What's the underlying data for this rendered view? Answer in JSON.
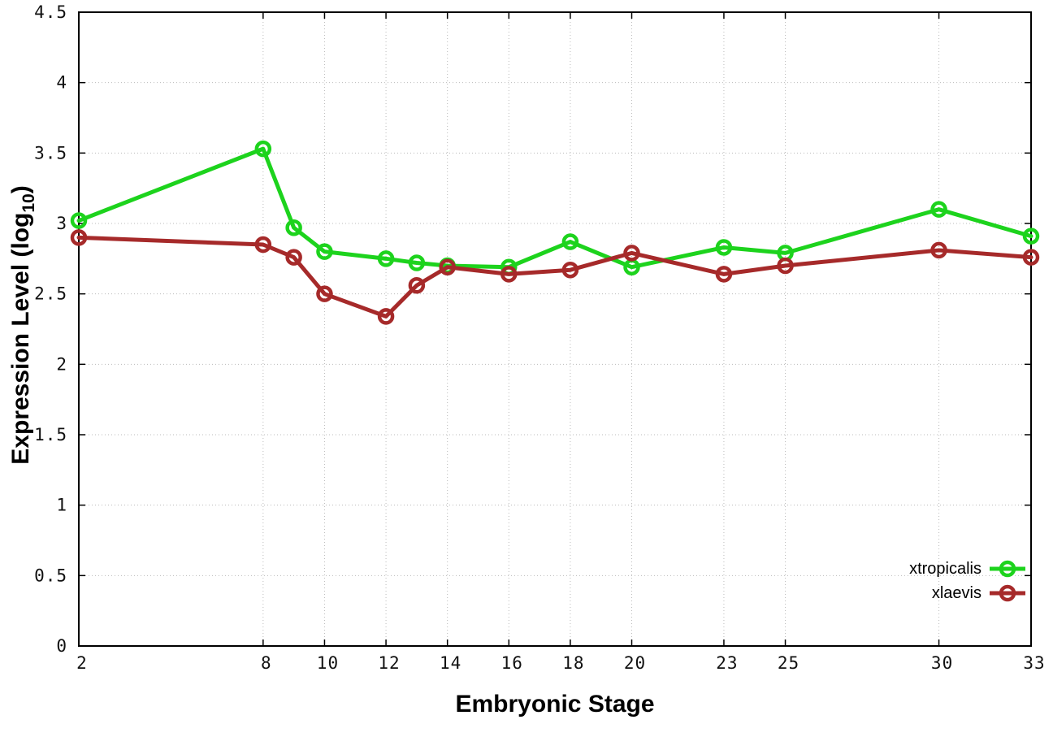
{
  "figure": {
    "xlabel": "Embryonic Stage",
    "ylabel": {
      "pre": "Expression Level (log",
      "sub": "10",
      "post": ")"
    },
    "legend": [
      {
        "label": "xtropicalis",
        "color": "#1dd31d"
      },
      {
        "label": "xlaevis",
        "color": "#a62a2a"
      }
    ],
    "colors": {
      "background": "#ffffff",
      "border": "#000000",
      "grid": "#bbbbbb",
      "tick_label": "#111111"
    }
  },
  "chart_data": {
    "type": "line",
    "x": [
      2,
      8,
      9,
      10,
      12,
      13,
      14,
      16,
      18,
      20,
      23,
      25,
      30,
      33
    ],
    "series": [
      {
        "name": "xtropicalis",
        "color": "#1dd31d",
        "values": [
          3.02,
          3.53,
          2.97,
          2.8,
          2.75,
          2.72,
          2.7,
          2.69,
          2.87,
          2.69,
          2.83,
          2.79,
          3.1,
          2.91
        ]
      },
      {
        "name": "xlaevis",
        "color": "#a62a2a",
        "values": [
          2.9,
          2.85,
          2.76,
          2.5,
          2.34,
          2.56,
          2.69,
          2.64,
          2.67,
          2.79,
          2.64,
          2.7,
          2.81,
          2.76
        ]
      }
    ],
    "title": "",
    "xlabel": "Embryonic Stage",
    "ylabel": "Expression Level (log10)",
    "xlim": [
      2,
      33
    ],
    "ylim": [
      0,
      4.5
    ],
    "xticks": [
      2,
      8,
      10,
      12,
      14,
      16,
      18,
      20,
      23,
      25,
      30,
      33
    ],
    "xtick_labels": [
      "2",
      "8",
      "10",
      "12",
      "14",
      "16",
      "18",
      "20",
      "23",
      "25",
      "30",
      "33"
    ],
    "yticks": [
      0,
      0.5,
      1,
      1.5,
      2,
      2.5,
      3,
      3.5,
      4,
      4.5
    ],
    "ytick_labels": [
      "0",
      "0.5",
      "1",
      "1.5",
      "2",
      "2.5",
      "3",
      "3.5",
      "4",
      "4.5"
    ],
    "grid": true,
    "grid_style": "dotted",
    "legend_position": "bottom-right",
    "marker": "open-circle",
    "line_width": 5,
    "marker_radius": 8
  }
}
